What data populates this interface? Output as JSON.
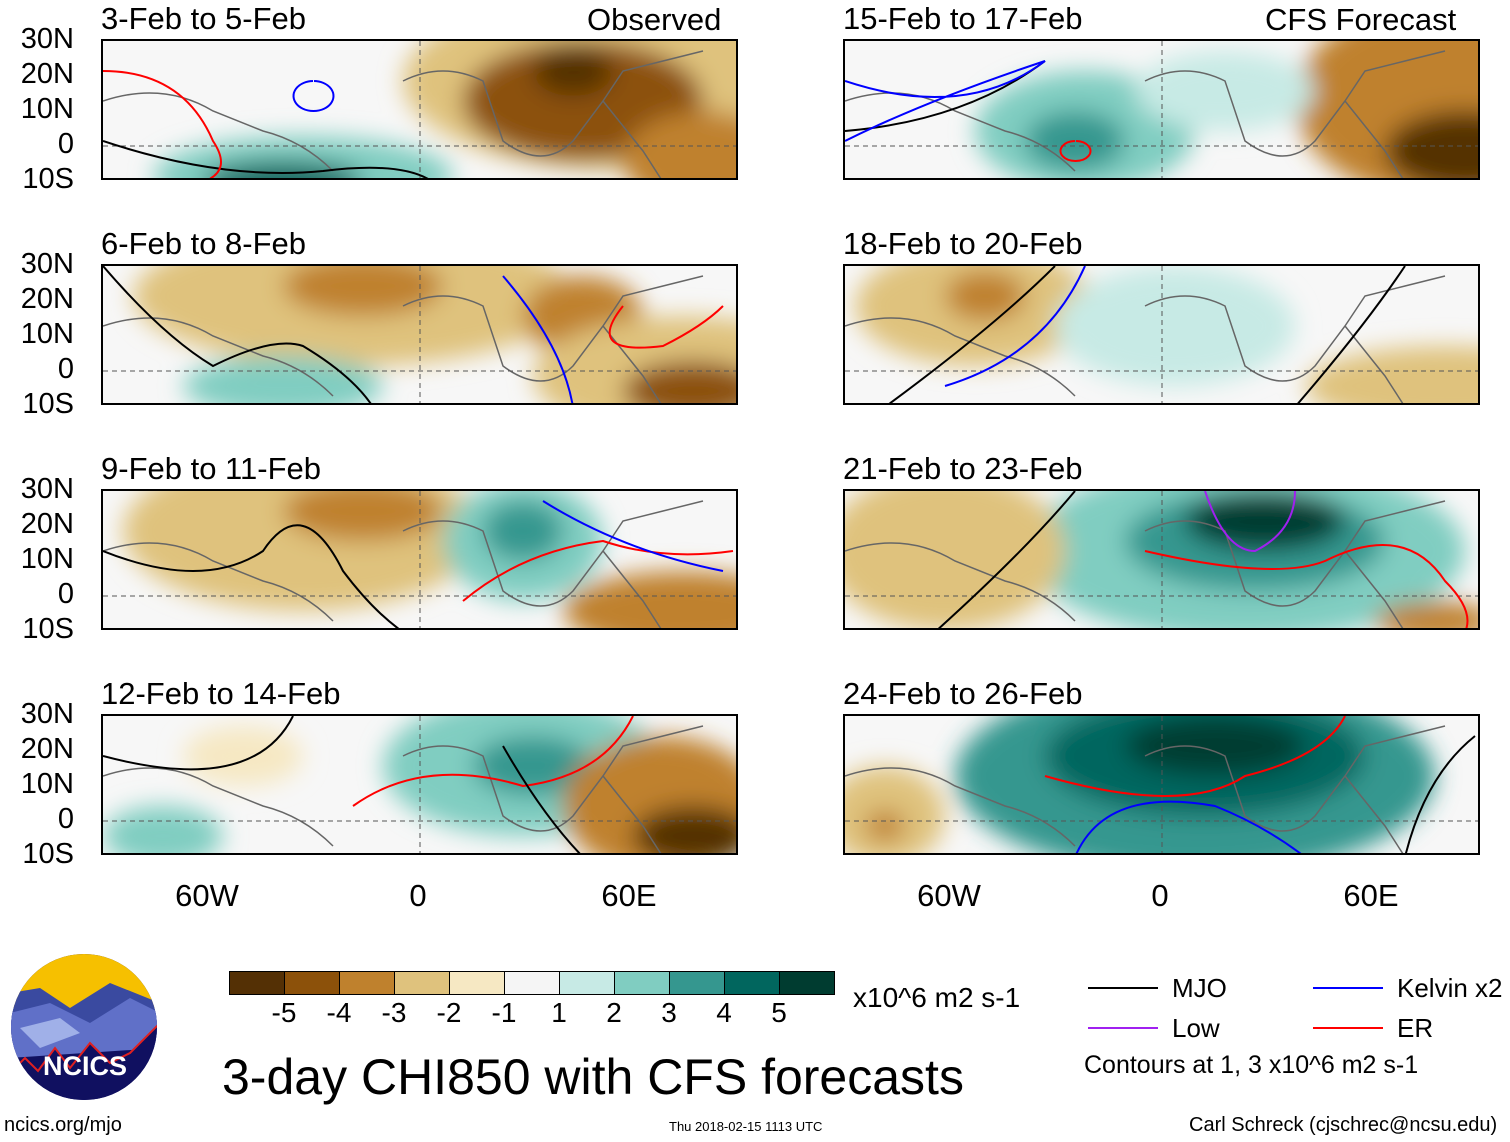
{
  "columns": [
    {
      "header": "Observed",
      "panels": [
        "3-Feb to 5-Feb",
        "6-Feb to 8-Feb",
        "9-Feb to 11-Feb",
        "12-Feb to 14-Feb"
      ]
    },
    {
      "header": "CFS Forecast",
      "panels": [
        "15-Feb to 17-Feb",
        "18-Feb to 20-Feb",
        "21-Feb to 23-Feb",
        "24-Feb to 26-Feb"
      ]
    }
  ],
  "lat_labels": [
    "30N",
    "20N",
    "10N",
    "0",
    "10S"
  ],
  "lon_labels": [
    "60W",
    "0",
    "60E"
  ],
  "colorbar": {
    "colors": [
      "#543005",
      "#8c510a",
      "#bf812d",
      "#dfc27d",
      "#f6e8c3",
      "#f5f5f5",
      "#c7eae5",
      "#80cdc1",
      "#35978f",
      "#01665e",
      "#003c30"
    ],
    "labels": [
      "-5",
      "-4",
      "-3",
      "-2",
      "-1",
      "1",
      "2",
      "3",
      "4",
      "5"
    ],
    "units": "x10^6 m2 s-1"
  },
  "legend": {
    "items": [
      {
        "label": "MJO",
        "color": "#000000"
      },
      {
        "label": "Kelvin x2",
        "color": "#0000ff"
      },
      {
        "label": "Low",
        "color": "#a020f0"
      },
      {
        "label": "ER",
        "color": "#ff0000"
      }
    ],
    "note": "Contours at 1, 3 x10^6 m2 s-1"
  },
  "title": "3-day CHI850 with CFS forecasts",
  "logo": {
    "text": "NCICS"
  },
  "footer": {
    "left": "ncics.org/mjo",
    "center": "Thu 2018-02-15 1113 UTC",
    "right": "Carl Schreck (cjschrec@ncsu.edu)"
  }
}
